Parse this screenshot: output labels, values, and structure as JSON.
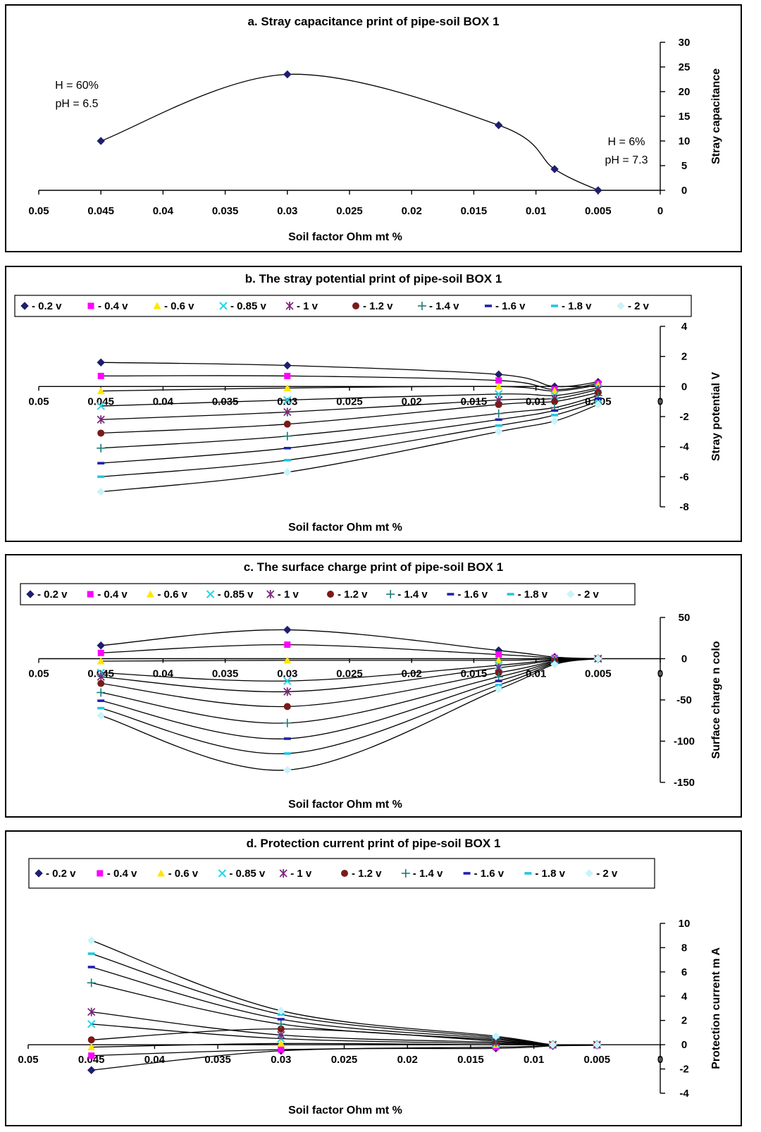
{
  "chart_data": [
    {
      "type": "line",
      "title": "a. Stray capacitance print of pipe-soil BOX 1",
      "xlabel": "Soil factor  Ohm mt %",
      "ylabel": "Stray capacitance",
      "xlim": [
        0.05,
        0
      ],
      "ylim": [
        0,
        30
      ],
      "x_ticks": [
        "0.05",
        "0.045",
        "0.04",
        "0.035",
        "0.03",
        "0.025",
        "0.02",
        "0.015",
        "0.01",
        "0.005",
        "0"
      ],
      "y_ticks": [
        "0",
        "5",
        "10",
        "15",
        "20",
        "25",
        "30"
      ],
      "x": [
        0.045,
        0.03,
        0.013,
        0.0085,
        0.005
      ],
      "series": [
        {
          "values": [
            10,
            23.5,
            13.2,
            4.3,
            0
          ]
        }
      ],
      "annotations": [
        {
          "lines": [
            "H = 60%",
            "pH = 6.5"
          ]
        },
        {
          "lines": [
            "H = 6%",
            "pH = 7.3"
          ]
        }
      ],
      "grid": false
    },
    {
      "type": "line",
      "title": "b. The stray potential print of pipe-soil BOX 1",
      "xlabel": "Soil factor  Ohm mt %",
      "ylabel": "Stray potential   V",
      "xlim": [
        0.05,
        0
      ],
      "ylim": [
        -8,
        4
      ],
      "x_ticks": [
        "0.05",
        "0.045",
        "0.04",
        "0.035",
        "0.03",
        "0.025",
        "0.02",
        "0.015",
        "0.01",
        "0.005",
        "0"
      ],
      "y_ticks": [
        "-8",
        "-6",
        "-4",
        "-2",
        "0",
        "2",
        "4"
      ],
      "legend_position": "top",
      "x": [
        0.045,
        0.03,
        0.013,
        0.0085,
        0.005
      ],
      "series": [
        {
          "name": "- 0.2 v",
          "values": [
            1.6,
            1.4,
            0.8,
            0.0,
            0.3
          ]
        },
        {
          "name": "- 0.4 v",
          "values": [
            0.7,
            0.7,
            0.4,
            -0.2,
            0.2
          ]
        },
        {
          "name": "- 0.6 v",
          "values": [
            -0.3,
            -0.1,
            0.0,
            -0.3,
            0.1
          ]
        },
        {
          "name": "- 0.85 v",
          "values": [
            -1.3,
            -0.9,
            -0.5,
            -0.6,
            -0.1
          ]
        },
        {
          "name": "- 1 v",
          "values": [
            -2.2,
            -1.7,
            -0.9,
            -0.8,
            -0.2
          ]
        },
        {
          "name": "- 1.2 v",
          "values": [
            -3.1,
            -2.5,
            -1.2,
            -1.0,
            -0.4
          ]
        },
        {
          "name": "- 1.4 v",
          "values": [
            -4.1,
            -3.3,
            -1.8,
            -1.4,
            -0.6
          ]
        },
        {
          "name": "- 1.6 v",
          "values": [
            -5.1,
            -4.1,
            -2.2,
            -1.6,
            -0.8
          ]
        },
        {
          "name": "- 1.8 v",
          "values": [
            -6.0,
            -4.9,
            -2.6,
            -1.9,
            -1.0
          ]
        },
        {
          "name": "- 2 v",
          "values": [
            -7.0,
            -5.7,
            -3.0,
            -2.3,
            -1.2
          ]
        }
      ],
      "grid": false
    },
    {
      "type": "line",
      "title": "c. The surface charge print of pipe-soil BOX 1",
      "xlabel": "Soil factor    Ohm mt %",
      "ylabel": "Surface charge  n colo",
      "xlim": [
        0.05,
        0
      ],
      "ylim": [
        -150,
        50
      ],
      "x_ticks": [
        "0.05",
        "0.045",
        "0.04",
        "0.035",
        "0.03",
        "0.025",
        "0.02",
        "0.015",
        "0.01",
        "0.005",
        "0"
      ],
      "y_ticks": [
        "-150",
        "-100",
        "-50",
        "0",
        "50"
      ],
      "legend_position": "top",
      "x": [
        0.045,
        0.03,
        0.013,
        0.0085,
        0.005
      ],
      "series": [
        {
          "name": "- 0.2 v",
          "values": [
            16,
            35,
            10,
            2,
            0
          ]
        },
        {
          "name": "- 0.4 v",
          "values": [
            7,
            17,
            5,
            1,
            0
          ]
        },
        {
          "name": "- 0.6 v",
          "values": [
            -3,
            -2,
            -2,
            0,
            0
          ]
        },
        {
          "name": "- 0.85 v",
          "values": [
            -17,
            -27,
            -8,
            -1,
            0
          ]
        },
        {
          "name": "- 1 v",
          "values": [
            -22,
            -40,
            -11,
            -2,
            0
          ]
        },
        {
          "name": "- 1.2 v",
          "values": [
            -30,
            -58,
            -17,
            -3,
            0
          ]
        },
        {
          "name": "- 1.4 v",
          "values": [
            -41,
            -78,
            -22,
            -4,
            0
          ]
        },
        {
          "name": "- 1.6 v",
          "values": [
            -51,
            -97,
            -27,
            -5,
            0
          ]
        },
        {
          "name": "- 1.8 v",
          "values": [
            -60,
            -115,
            -32,
            -6,
            0
          ]
        },
        {
          "name": "- 2 v",
          "values": [
            -69,
            -135,
            -37,
            -7,
            0
          ]
        }
      ],
      "grid": false
    },
    {
      "type": "line",
      "title": "d. Protection current print of pipe-soil BOX 1",
      "xlabel": "Soil factor    Ohm mt %",
      "ylabel": "Protection current    m A",
      "xlim": [
        0.05,
        0
      ],
      "ylim": [
        -4,
        10
      ],
      "x_ticks": [
        "0.05",
        "0.045",
        "0.04",
        "0.035",
        "0.03",
        "0.025",
        "0.02",
        "0.015",
        "0.01",
        "0.005",
        "0"
      ],
      "y_ticks": [
        "-4",
        "-2",
        "0",
        "2",
        "4",
        "6",
        "8",
        "10"
      ],
      "legend_position": "top",
      "x": [
        0.045,
        0.03,
        0.013,
        0.0085,
        0.005
      ],
      "series": [
        {
          "name": "- 0.2 v",
          "values": [
            -2.1,
            -0.5,
            -0.3,
            -0.1,
            -0.05
          ]
        },
        {
          "name": "- 0.4 v",
          "values": [
            -0.9,
            -0.4,
            -0.2,
            -0.05,
            -0.05
          ]
        },
        {
          "name": "- 0.6 v",
          "values": [
            -0.2,
            0.1,
            0.0,
            0.0,
            0.0
          ]
        },
        {
          "name": "- 0.85 v",
          "values": [
            1.7,
            0.5,
            0.1,
            0.0,
            0.0
          ]
        },
        {
          "name": "- 1 v",
          "values": [
            2.7,
            0.8,
            0.2,
            0.0,
            0.0
          ]
        },
        {
          "name": "- 1.2 v",
          "values": [
            0.4,
            1.3,
            0.3,
            0.0,
            0.0
          ]
        },
        {
          "name": "- 1.4 v",
          "values": [
            5.1,
            1.7,
            0.4,
            0.0,
            0.0
          ]
        },
        {
          "name": "- 1.6 v",
          "values": [
            6.4,
            2.1,
            0.5,
            0.0,
            0.0
          ]
        },
        {
          "name": "- 1.8 v",
          "values": [
            7.5,
            2.5,
            0.6,
            0.0,
            0.0
          ]
        },
        {
          "name": "- 2 v",
          "values": [
            8.6,
            2.8,
            0.7,
            0.0,
            0.0
          ]
        }
      ],
      "grid": false
    }
  ],
  "series_styles": [
    {
      "marker": "diamond",
      "color": "#1f1f6e"
    },
    {
      "marker": "square",
      "color": "#ff00ff"
    },
    {
      "marker": "triangle",
      "color": "#ffe600"
    },
    {
      "marker": "x",
      "color": "#22d7e6"
    },
    {
      "marker": "star",
      "color": "#7b2a7b"
    },
    {
      "marker": "circle",
      "color": "#7a1a1a"
    },
    {
      "marker": "plus",
      "color": "#1c7a78"
    },
    {
      "marker": "dash",
      "color": "#2020b0"
    },
    {
      "marker": "dash",
      "color": "#22c5e0"
    },
    {
      "marker": "diamond",
      "color": "#c8f4f8"
    }
  ]
}
